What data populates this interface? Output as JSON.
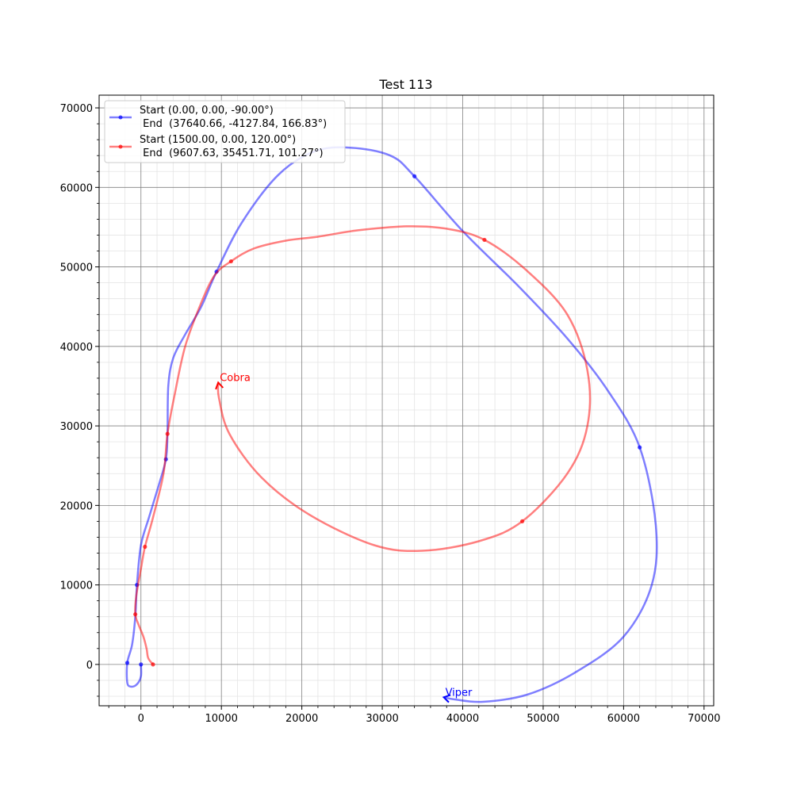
{
  "chart_data": {
    "type": "line",
    "title": "Test 113",
    "xlabel": "",
    "ylabel": "",
    "xlim": [
      -5200,
      71200
    ],
    "ylim": [
      -5200,
      71600
    ],
    "xticks": [
      0,
      10000,
      20000,
      30000,
      40000,
      50000,
      60000,
      70000
    ],
    "yticks": [
      0,
      10000,
      20000,
      30000,
      40000,
      50000,
      60000,
      70000
    ],
    "grid": true,
    "minor_grid": true,
    "legend_position": "upper-left",
    "series": [
      {
        "name": "Start (0.00, 0.00, -90.00°)\n End  (37640.66, -4127.84, 166.83°)",
        "label_line1": "Start (0.00, 0.00, -90.00°)",
        "label_line2": " End  (37640.66, -4127.84, 166.83°)",
        "color": "#0000ff",
        "annotation": "Viper",
        "end_heading_deg": 166.83,
        "points": [
          [
            0,
            0
          ],
          [
            0,
            -1500
          ],
          [
            -500,
            -2500
          ],
          [
            -1200,
            -2800
          ],
          [
            -1700,
            -2300
          ],
          [
            -1700,
            200
          ],
          [
            -1100,
            2500
          ],
          [
            -700,
            6000
          ],
          [
            -500,
            10000
          ],
          [
            0,
            15000
          ],
          [
            1000,
            18500
          ],
          [
            2200,
            22500
          ],
          [
            3100,
            25800
          ],
          [
            3300,
            29000
          ],
          [
            3400,
            35000
          ],
          [
            4000,
            38500
          ],
          [
            5500,
            41500
          ],
          [
            7500,
            45000
          ],
          [
            9400,
            49400
          ],
          [
            12500,
            55500
          ],
          [
            17000,
            61500
          ],
          [
            21500,
            64500
          ],
          [
            26000,
            65000
          ],
          [
            31000,
            64000
          ],
          [
            34000,
            61400
          ],
          [
            40000,
            54500
          ],
          [
            47000,
            47500
          ],
          [
            53000,
            41000
          ],
          [
            58000,
            34500
          ],
          [
            62000,
            27300
          ],
          [
            64000,
            17500
          ],
          [
            63500,
            10000
          ],
          [
            60000,
            3500
          ],
          [
            54000,
            -1000
          ],
          [
            48000,
            -3800
          ],
          [
            42500,
            -4700
          ],
          [
            39000,
            -4400
          ],
          [
            37640,
            -4128
          ]
        ],
        "markers": [
          [
            0,
            0
          ],
          [
            -1700,
            200
          ],
          [
            -500,
            10000
          ],
          [
            3100,
            25800
          ],
          [
            9400,
            49400
          ],
          [
            34000,
            61400
          ],
          [
            62000,
            27300
          ]
        ]
      },
      {
        "name": "Start (1500.00, 0.00, 120.00°)\n End  (9607.63, 35451.71, 101.27°)",
        "label_line1": "Start (1500.00, 0.00, 120.00°)",
        "label_line2": " End  (9607.63, 35451.71, 101.27°)",
        "color": "#ff0000",
        "annotation": "Cobra",
        "end_heading_deg": 101.27,
        "points": [
          [
            1500,
            0
          ],
          [
            900,
            800
          ],
          [
            700,
            2000
          ],
          [
            300,
            3500
          ],
          [
            -300,
            5000
          ],
          [
            -700,
            6300
          ],
          [
            -600,
            8500
          ],
          [
            0,
            12000
          ],
          [
            500,
            14800
          ],
          [
            1500,
            18500
          ],
          [
            2800,
            24000
          ],
          [
            3300,
            29000
          ],
          [
            4200,
            34000
          ],
          [
            5500,
            40000
          ],
          [
            7500,
            45500
          ],
          [
            9200,
            49000
          ],
          [
            11200,
            50700
          ],
          [
            14000,
            52300
          ],
          [
            18000,
            53300
          ],
          [
            22000,
            53800
          ],
          [
            27000,
            54600
          ],
          [
            33000,
            55100
          ],
          [
            38000,
            54800
          ],
          [
            42700,
            53400
          ],
          [
            48000,
            49500
          ],
          [
            53000,
            44000
          ],
          [
            55500,
            37000
          ],
          [
            55500,
            30000
          ],
          [
            53000,
            24000
          ],
          [
            47400,
            18000
          ],
          [
            42000,
            15500
          ],
          [
            35000,
            14300
          ],
          [
            29000,
            15000
          ],
          [
            21000,
            18800
          ],
          [
            15000,
            23500
          ],
          [
            11000,
            29000
          ],
          [
            9700,
            33500
          ],
          [
            9607,
            35452
          ]
        ],
        "markers": [
          [
            1500,
            0
          ],
          [
            -700,
            6300
          ],
          [
            500,
            14800
          ],
          [
            3300,
            29000
          ],
          [
            11200,
            50700
          ],
          [
            42700,
            53400
          ],
          [
            47400,
            18000
          ]
        ]
      }
    ]
  }
}
